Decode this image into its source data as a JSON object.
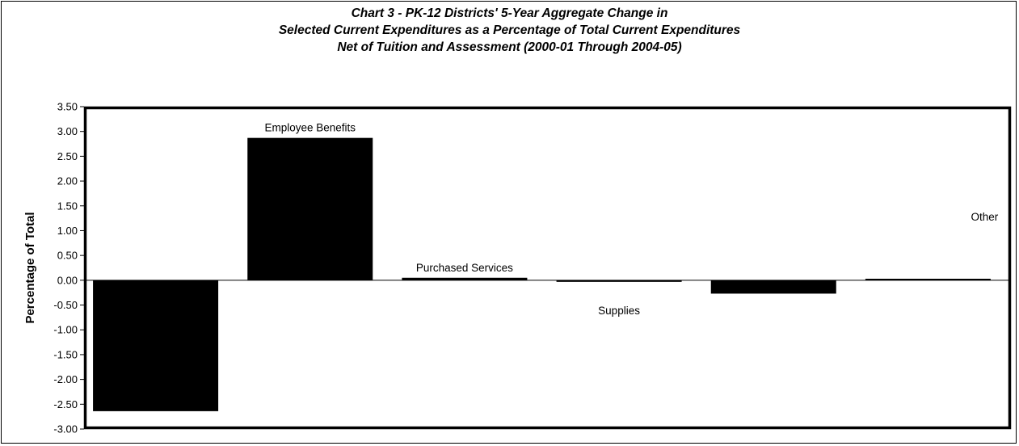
{
  "chart_data": {
    "type": "bar",
    "title_lines": [
      "Chart 3 - PK-12 Districts' 5-Year Aggregate Change in",
      "Selected Current Expenditures as a Percentage of Total Current Expenditures",
      "Net of Tuition and Assessment (2000-01 Through 2004-05)"
    ],
    "ylabel": "Percentage of Total",
    "xlabel": "",
    "ylim": [
      -3.0,
      3.5
    ],
    "yticks": [
      "3.50",
      "3.00",
      "2.50",
      "2.00",
      "1.50",
      "1.00",
      "0.50",
      "0.00",
      "-0.50",
      "-1.00",
      "-1.50",
      "-2.00",
      "-2.50",
      "-3.00"
    ],
    "bars": [
      {
        "label": "",
        "value": -2.64
      },
      {
        "label": "Employee Benefits",
        "value": 2.87
      },
      {
        "label": "Purchased Services",
        "value": 0.05
      },
      {
        "label": "Supplies",
        "value": -0.03
      },
      {
        "label": "",
        "value": -0.27
      },
      {
        "label": "Other",
        "value": 0.03
      }
    ],
    "bar_color": "#000000",
    "grid": false,
    "legend": "none"
  }
}
